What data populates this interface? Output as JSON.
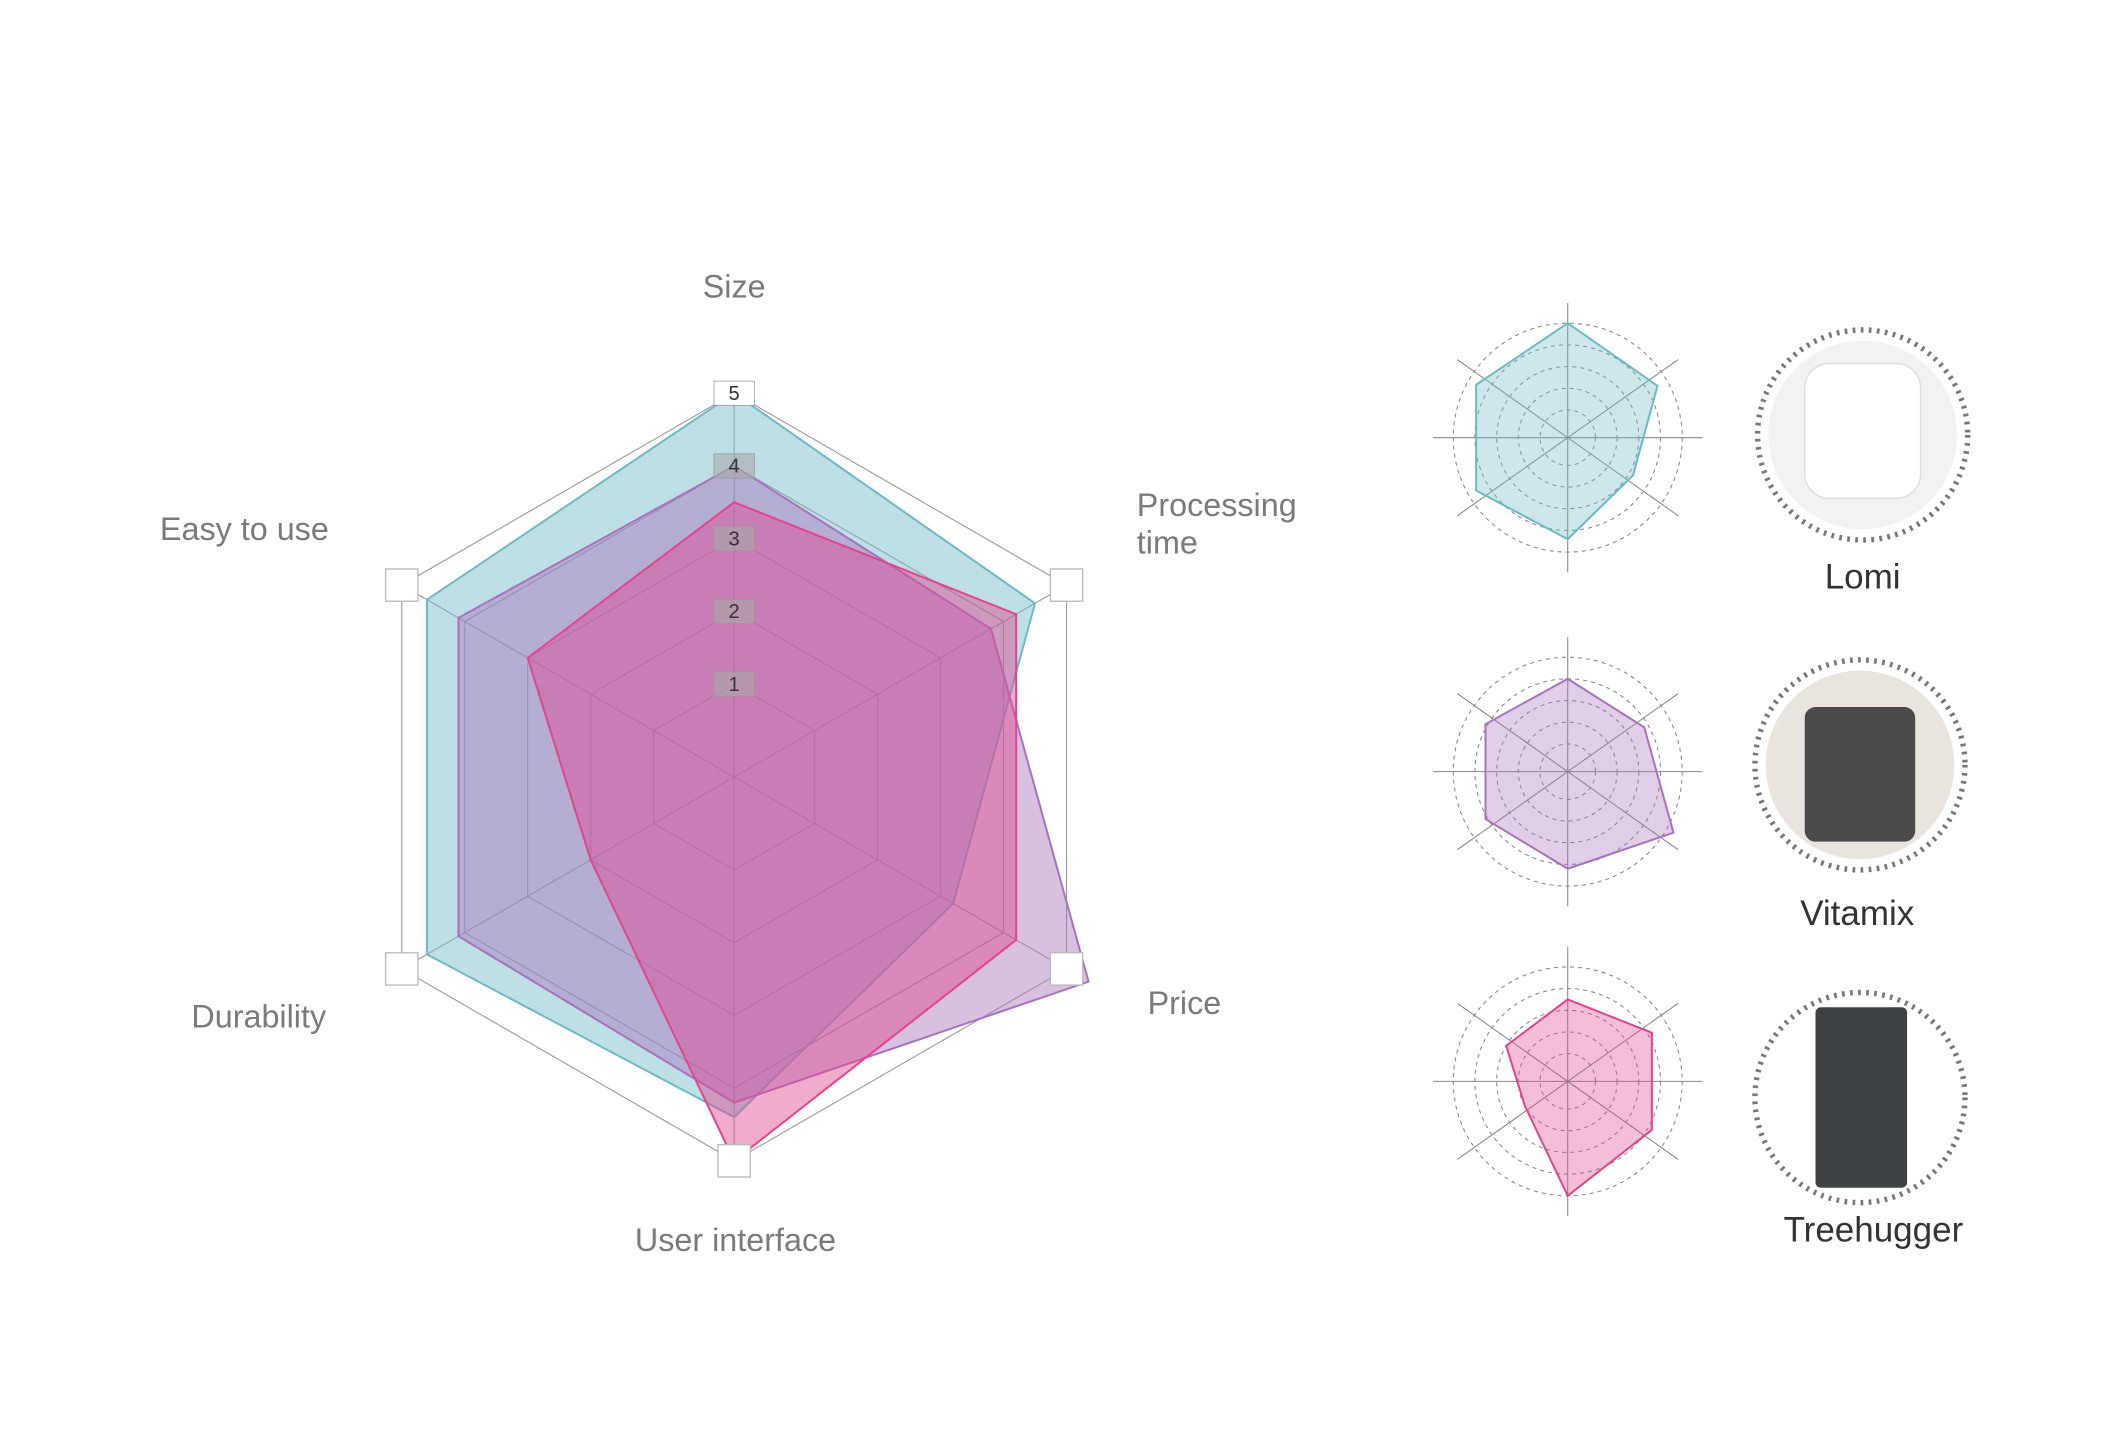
{
  "chart_data": {
    "type": "radar",
    "categories": [
      "Size",
      "Processing time",
      "Price",
      "User interface",
      "Durability",
      "Easy to use"
    ],
    "series": [
      {
        "name": "Lomi",
        "color": "#6fb9c6",
        "values": [
          5,
          4.5,
          3.2,
          4.4,
          4.6,
          4.6
        ]
      },
      {
        "name": "Vitamix",
        "color": "#a873bd",
        "values": [
          4,
          3.8,
          5.35,
          4.2,
          4.1,
          4.1
        ]
      },
      {
        "name": "Treehugger",
        "color": "#e0458e",
        "values": [
          3.5,
          4.2,
          4.2,
          5,
          2,
          3
        ]
      }
    ],
    "rlim": [
      0,
      5
    ],
    "rticks": [
      1,
      2,
      3,
      4,
      5
    ]
  }
}
